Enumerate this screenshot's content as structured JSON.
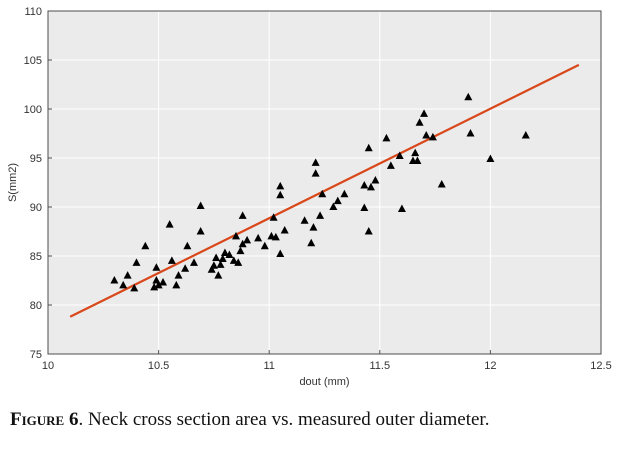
{
  "chart_data": {
    "type": "scatter",
    "xlabel": "dout (mm)",
    "ylabel": "S(mm2)",
    "xlim": [
      10,
      12.5
    ],
    "ylim": [
      75,
      110
    ],
    "xticks": [
      "10",
      "10.5",
      "11",
      "11.5",
      "12",
      "12.5"
    ],
    "yticks": [
      "75",
      "80",
      "85",
      "90",
      "95",
      "100",
      "105",
      "110"
    ],
    "grid": true,
    "background_color": "#ebebeb",
    "grid_color": "#ffffff",
    "marker_color": "#000000",
    "fit_line_color": "#d9481a",
    "series": [
      {
        "marker": "triangle",
        "points": [
          [
            10.3,
            82.5
          ],
          [
            10.34,
            82.0
          ],
          [
            10.36,
            83.0
          ],
          [
            10.39,
            81.7
          ],
          [
            10.4,
            84.3
          ],
          [
            10.44,
            86.0
          ],
          [
            10.48,
            81.8
          ],
          [
            10.49,
            82.5
          ],
          [
            10.49,
            83.8
          ],
          [
            10.5,
            82.0
          ],
          [
            10.52,
            82.3
          ],
          [
            10.55,
            88.2
          ],
          [
            10.56,
            84.5
          ],
          [
            10.58,
            82.0
          ],
          [
            10.59,
            83.0
          ],
          [
            10.62,
            83.7
          ],
          [
            10.63,
            86.0
          ],
          [
            10.66,
            84.3
          ],
          [
            10.69,
            90.1
          ],
          [
            10.69,
            87.5
          ],
          [
            10.74,
            83.6
          ],
          [
            10.75,
            84.0
          ],
          [
            10.76,
            84.8
          ],
          [
            10.77,
            83.0
          ],
          [
            10.78,
            84.1
          ],
          [
            10.79,
            84.7
          ],
          [
            10.8,
            85.3
          ],
          [
            10.82,
            85.1
          ],
          [
            10.84,
            84.5
          ],
          [
            10.85,
            87.0
          ],
          [
            10.86,
            84.3
          ],
          [
            10.87,
            85.5
          ],
          [
            10.88,
            86.2
          ],
          [
            10.88,
            89.1
          ],
          [
            10.9,
            86.6
          ],
          [
            10.95,
            86.8
          ],
          [
            10.98,
            86.0
          ],
          [
            11.01,
            87.0
          ],
          [
            11.02,
            88.9
          ],
          [
            11.03,
            86.9
          ],
          [
            11.05,
            92.1
          ],
          [
            11.05,
            91.2
          ],
          [
            11.05,
            85.2
          ],
          [
            11.07,
            87.6
          ],
          [
            11.16,
            88.6
          ],
          [
            11.19,
            86.3
          ],
          [
            11.2,
            87.9
          ],
          [
            11.21,
            94.5
          ],
          [
            11.21,
            93.4
          ],
          [
            11.23,
            89.1
          ],
          [
            11.24,
            91.3
          ],
          [
            11.29,
            90.0
          ],
          [
            11.31,
            90.6
          ],
          [
            11.34,
            91.3
          ],
          [
            11.43,
            89.9
          ],
          [
            11.43,
            92.2
          ],
          [
            11.45,
            96.0
          ],
          [
            11.45,
            87.5
          ],
          [
            11.46,
            92.0
          ],
          [
            11.48,
            92.7
          ],
          [
            11.53,
            97.0
          ],
          [
            11.55,
            94.2
          ],
          [
            11.59,
            95.2
          ],
          [
            11.6,
            89.8
          ],
          [
            11.65,
            94.7
          ],
          [
            11.66,
            95.5
          ],
          [
            11.67,
            94.7
          ],
          [
            11.68,
            98.6
          ],
          [
            11.7,
            99.5
          ],
          [
            11.71,
            97.3
          ],
          [
            11.74,
            97.1
          ],
          [
            11.78,
            92.3
          ],
          [
            11.9,
            101.2
          ],
          [
            11.91,
            97.5
          ],
          [
            12.0,
            94.9
          ],
          [
            12.16,
            97.3
          ]
        ]
      }
    ],
    "fit_line": {
      "x": [
        10.1,
        12.4
      ],
      "y": [
        78.8,
        104.5
      ]
    }
  },
  "caption": {
    "label": "Figure 6",
    "text": ". Neck cross section area vs. measured outer diameter."
  }
}
